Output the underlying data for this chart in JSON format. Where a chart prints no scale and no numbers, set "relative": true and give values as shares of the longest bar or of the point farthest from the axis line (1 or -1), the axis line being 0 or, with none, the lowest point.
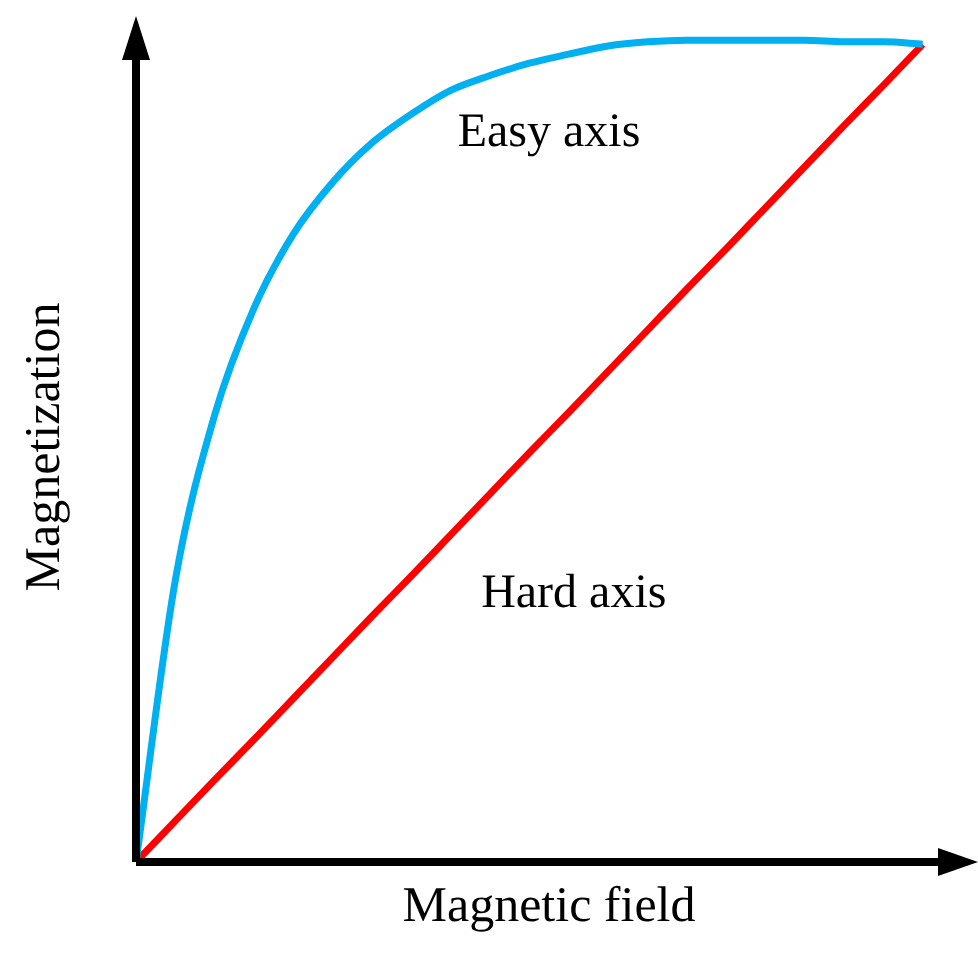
{
  "chart_data": {
    "type": "line",
    "relative": true,
    "xlabel": "Magnetic field",
    "ylabel": "Magnetization",
    "categories": [
      null,
      null,
      null,
      null,
      null,
      null,
      null,
      null,
      null,
      null,
      null,
      null,
      null,
      null,
      null,
      null,
      null,
      null,
      null,
      null,
      null,
      null
    ],
    "series": [
      {
        "name": "Easy axis",
        "color": "#00b0f0",
        "values": [
          0,
          0.343,
          0.544,
          0.674,
          0.764,
          0.827,
          0.875,
          0.91,
          0.939,
          0.957,
          0.972,
          0.983,
          0.993,
          0.998,
          1,
          1,
          1,
          1,
          0.998,
          0.998,
          0.995,
          null
        ]
      },
      {
        "name": "Hard axis",
        "color": "#ff0000",
        "values": [
          0,
          0.05,
          0.1,
          0.149,
          0.199,
          0.249,
          0.299,
          0.348,
          0.398,
          0.448,
          0.498,
          0.547,
          0.597,
          0.647,
          0.697,
          0.746,
          0.796,
          0.846,
          0.896,
          0.945,
          0.995,
          null
        ]
      }
    ],
    "grid": false,
    "legend": false,
    "marker": "none",
    "line_style": "solid"
  }
}
